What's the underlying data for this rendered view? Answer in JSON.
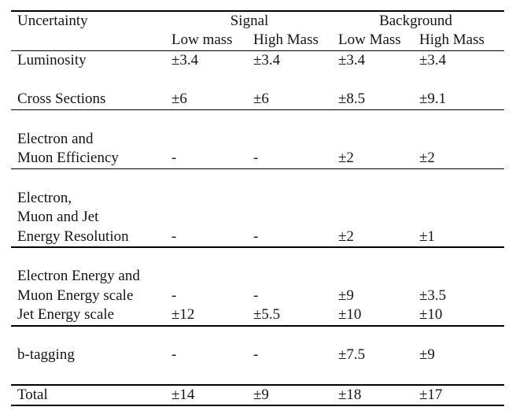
{
  "page": {
    "background": "#ffffff",
    "text_color": "#151515",
    "rule_color": "#000000"
  },
  "table": {
    "header": {
      "uncertainty": "Uncertainty",
      "signal": "Signal",
      "background": "Background",
      "subheaders": [
        "Low mass",
        "High Mass",
        "Low Mass",
        "High Mass"
      ]
    },
    "lines": [
      {
        "label": "Luminosity",
        "values": [
          "±3.4",
          "±3.4",
          "±3.4",
          "±3.4"
        ]
      },
      {
        "label": "Cross Sections",
        "values": [
          "±6",
          "±6",
          "±8.5",
          "±9.1"
        ]
      },
      {
        "label": "Electron and",
        "values": [
          "",
          "",
          "",
          ""
        ]
      },
      {
        "label": "Muon Efficiency",
        "values": [
          "-",
          "-",
          "±2",
          "±2"
        ]
      },
      {
        "label": "Electron,",
        "values": [
          "",
          "",
          "",
          ""
        ]
      },
      {
        "label": "Muon and Jet",
        "values": [
          "",
          "",
          "",
          ""
        ]
      },
      {
        "label": "Energy Resolution",
        "values": [
          "-",
          "-",
          "±2",
          "±1"
        ]
      },
      {
        "label": "Electron Energy and",
        "values": [
          "",
          "",
          "",
          ""
        ]
      },
      {
        "label": "Muon Energy scale",
        "values": [
          "-",
          "-",
          "±9",
          "±3.5"
        ]
      },
      {
        "label": "Jet Energy scale",
        "values": [
          "±12",
          "±5.5",
          "±10",
          "±10"
        ]
      },
      {
        "label": "b-tagging",
        "values": [
          "-",
          "-",
          "±7.5",
          "±9"
        ]
      },
      {
        "label": "Total",
        "values": [
          "±14",
          "±9",
          "±18",
          "±17"
        ]
      }
    ]
  }
}
